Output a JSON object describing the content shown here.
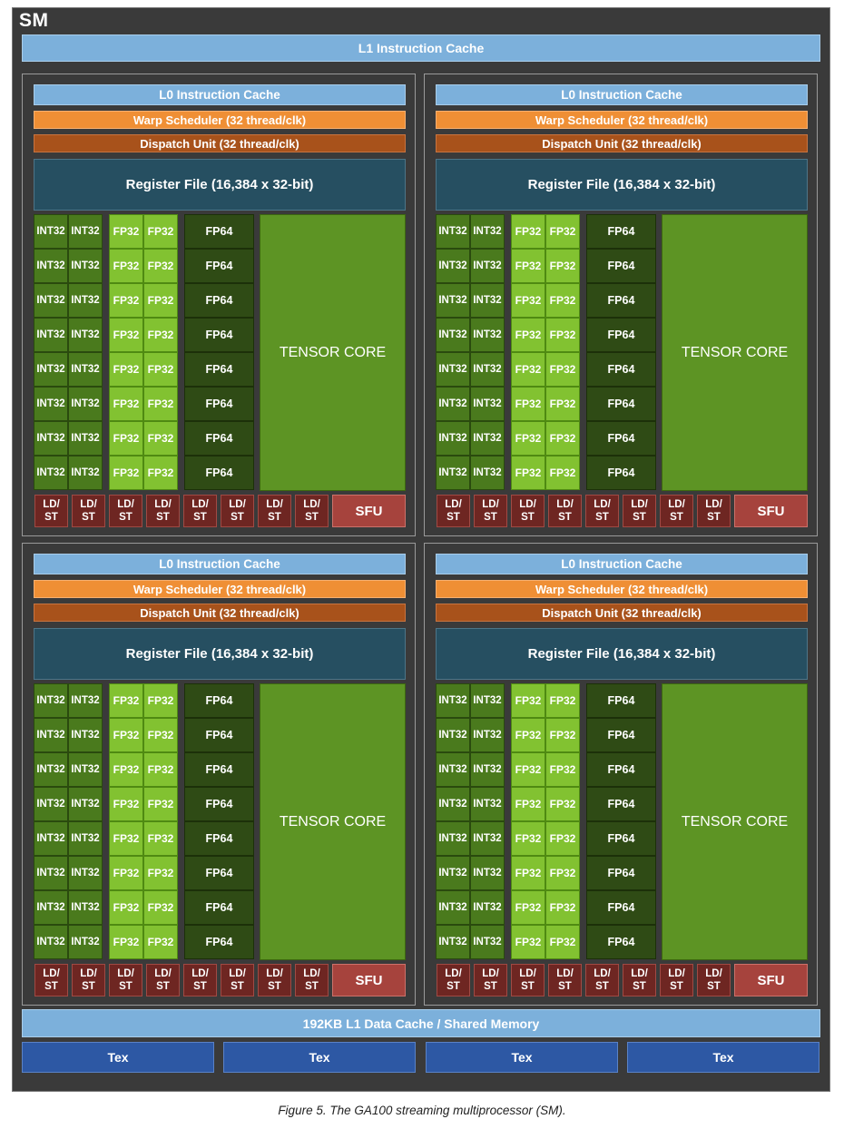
{
  "sm": {
    "title": "SM",
    "l1_instruction_cache": "L1 Instruction Cache",
    "l1_data_cache": "192KB L1 Data Cache / Shared Memory",
    "tex_units": [
      "Tex",
      "Tex",
      "Tex",
      "Tex"
    ]
  },
  "partition": {
    "l0_cache": "L0 Instruction Cache",
    "warp_scheduler": "Warp Scheduler (32 thread/clk)",
    "dispatch_unit": "Dispatch Unit (32 thread/clk)",
    "register_file": "Register File (16,384 x 32-bit)",
    "int32_label": "INT32",
    "fp32_label": "FP32",
    "fp64_label": "FP64",
    "tensor_core": "TENSOR CORE",
    "ldst_line1": "LD/",
    "ldst_line2": "ST",
    "sfu": "SFU",
    "int32_rows": 8,
    "int32_cols": 2,
    "fp32_rows": 8,
    "fp32_cols": 2,
    "fp64_rows": 8,
    "ldst_count": 8
  },
  "partition_count": 4,
  "caption": "Figure 5. The GA100 streaming multiprocessor (SM).",
  "colors": {
    "sm_background": "#3a3a3a",
    "cache": "#7cb0db",
    "warp_scheduler": "#ef8f35",
    "dispatch_unit": "#a8521b",
    "register_file": "#264f61",
    "int32": "#4a7a1d",
    "fp32": "#82c231",
    "fp64": "#2f4b15",
    "tensor_core": "#5d9424",
    "ldst": "#6e2622",
    "sfu": "#a6433d",
    "tex": "#2d58a4"
  }
}
